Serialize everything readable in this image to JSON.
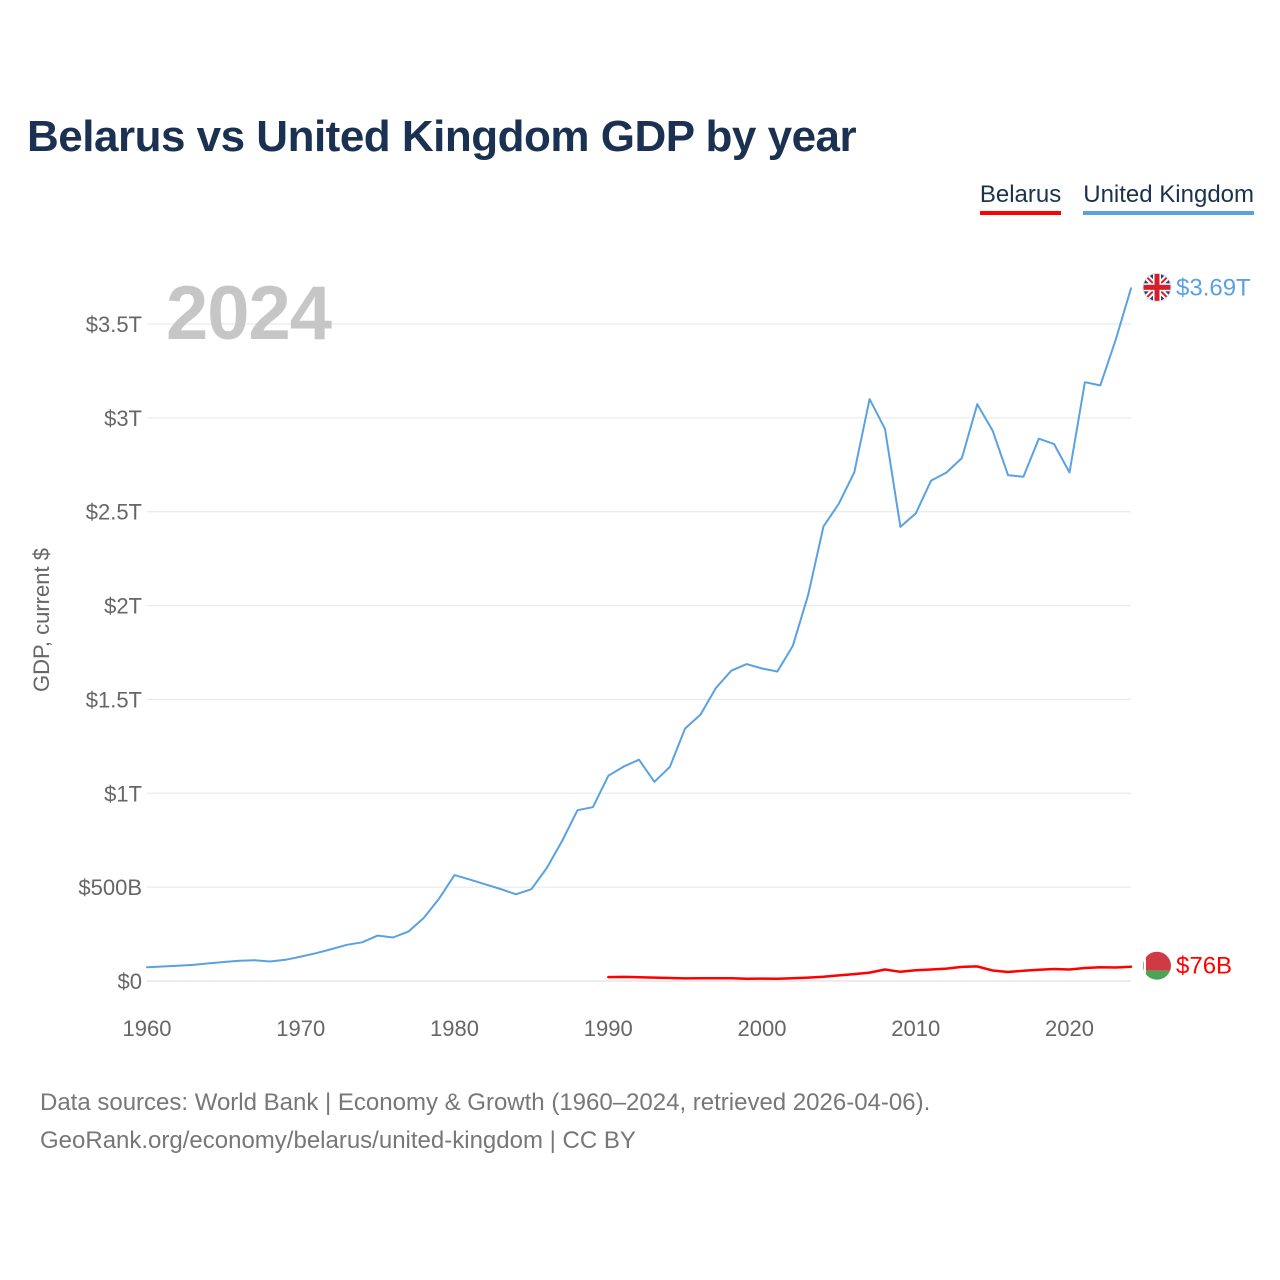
{
  "title": "Belarus vs United Kingdom GDP by year",
  "year_watermark": "2024",
  "legend": {
    "belarus": "Belarus",
    "uk": "United Kingdom"
  },
  "ylabel": "GDP, current $",
  "end_labels": {
    "uk": "$3.69T",
    "belarus": "$76B"
  },
  "sources": {
    "line1": "Data sources: World Bank | Economy & Growth (1960–2024, retrieved 2026-04-06).",
    "line2": "GeoRank.org/economy/belarus/united-kingdom | CC BY"
  },
  "colors": {
    "belarus": "#ff0000",
    "uk": "#5aa1e2"
  },
  "chart_data": {
    "type": "line",
    "title": "Belarus vs United Kingdom GDP by year",
    "xlabel": "",
    "ylabel": "GDP, current $",
    "xlim": [
      1960,
      2024
    ],
    "ylim": [
      0,
      3800
    ],
    "y_unit": "billions of current US$",
    "x_ticks": [
      1960,
      1970,
      1980,
      1990,
      2000,
      2010,
      2020
    ],
    "x_tick_labels": [
      "1960",
      "1970",
      "1980",
      "1990",
      "2000",
      "2010",
      "2020"
    ],
    "y_ticks": [
      0,
      500,
      1000,
      1500,
      2000,
      2500,
      3000,
      3500
    ],
    "y_tick_labels": [
      "$0",
      "$500B",
      "$1T",
      "$1.5T",
      "$2T",
      "$2.5T",
      "$3T",
      "$3.5T"
    ],
    "grid": true,
    "legend_position": "top-right",
    "series": [
      {
        "name": "United Kingdom",
        "color": "#5aa1e2",
        "x": [
          1960,
          1961,
          1962,
          1963,
          1964,
          1965,
          1966,
          1967,
          1968,
          1969,
          1970,
          1971,
          1972,
          1973,
          1974,
          1975,
          1976,
          1977,
          1978,
          1979,
          1980,
          1981,
          1982,
          1983,
          1984,
          1985,
          1986,
          1987,
          1988,
          1989,
          1990,
          1991,
          1992,
          1993,
          1994,
          1995,
          1996,
          1997,
          1998,
          1999,
          2000,
          2001,
          2002,
          2003,
          2004,
          2005,
          2006,
          2007,
          2008,
          2009,
          2010,
          2011,
          2012,
          2013,
          2014,
          2015,
          2016,
          2017,
          2018,
          2019,
          2020,
          2021,
          2022,
          2023,
          2024
        ],
        "values": [
          73,
          77,
          81,
          86,
          94,
          101,
          108,
          111,
          104,
          113,
          130,
          148,
          170,
          193,
          206,
          242,
          232,
          263,
          336,
          439,
          564,
          540,
          515,
          490,
          462,
          489,
          602,
          746,
          910,
          926,
          1093,
          1142,
          1179,
          1061,
          1140,
          1345,
          1419,
          1561,
          1653,
          1688,
          1665,
          1649,
          1785,
          2055,
          2422,
          2543,
          2710,
          3100,
          2941,
          2419,
          2491,
          2666,
          2709,
          2786,
          3073,
          2932,
          2695,
          2686,
          2889,
          2860,
          2709,
          3190,
          3173,
          3414,
          3690
        ]
      },
      {
        "name": "Belarus",
        "color": "#ff0000",
        "x": [
          1990,
          1991,
          1992,
          1993,
          1994,
          1995,
          1996,
          1997,
          1998,
          1999,
          2000,
          2001,
          2002,
          2003,
          2004,
          2005,
          2006,
          2007,
          2008,
          2009,
          2010,
          2011,
          2012,
          2013,
          2014,
          2015,
          2016,
          2017,
          2018,
          2019,
          2020,
          2021,
          2022,
          2023,
          2024
        ],
        "values": [
          21,
          22,
          20,
          18,
          16,
          14,
          15,
          15,
          15,
          12,
          13,
          12,
          15,
          18,
          23,
          30,
          37,
          45,
          61,
          49,
          57,
          61,
          66,
          75,
          78,
          56,
          48,
          55,
          60,
          64,
          61,
          69,
          73,
          72,
          76
        ]
      }
    ]
  }
}
